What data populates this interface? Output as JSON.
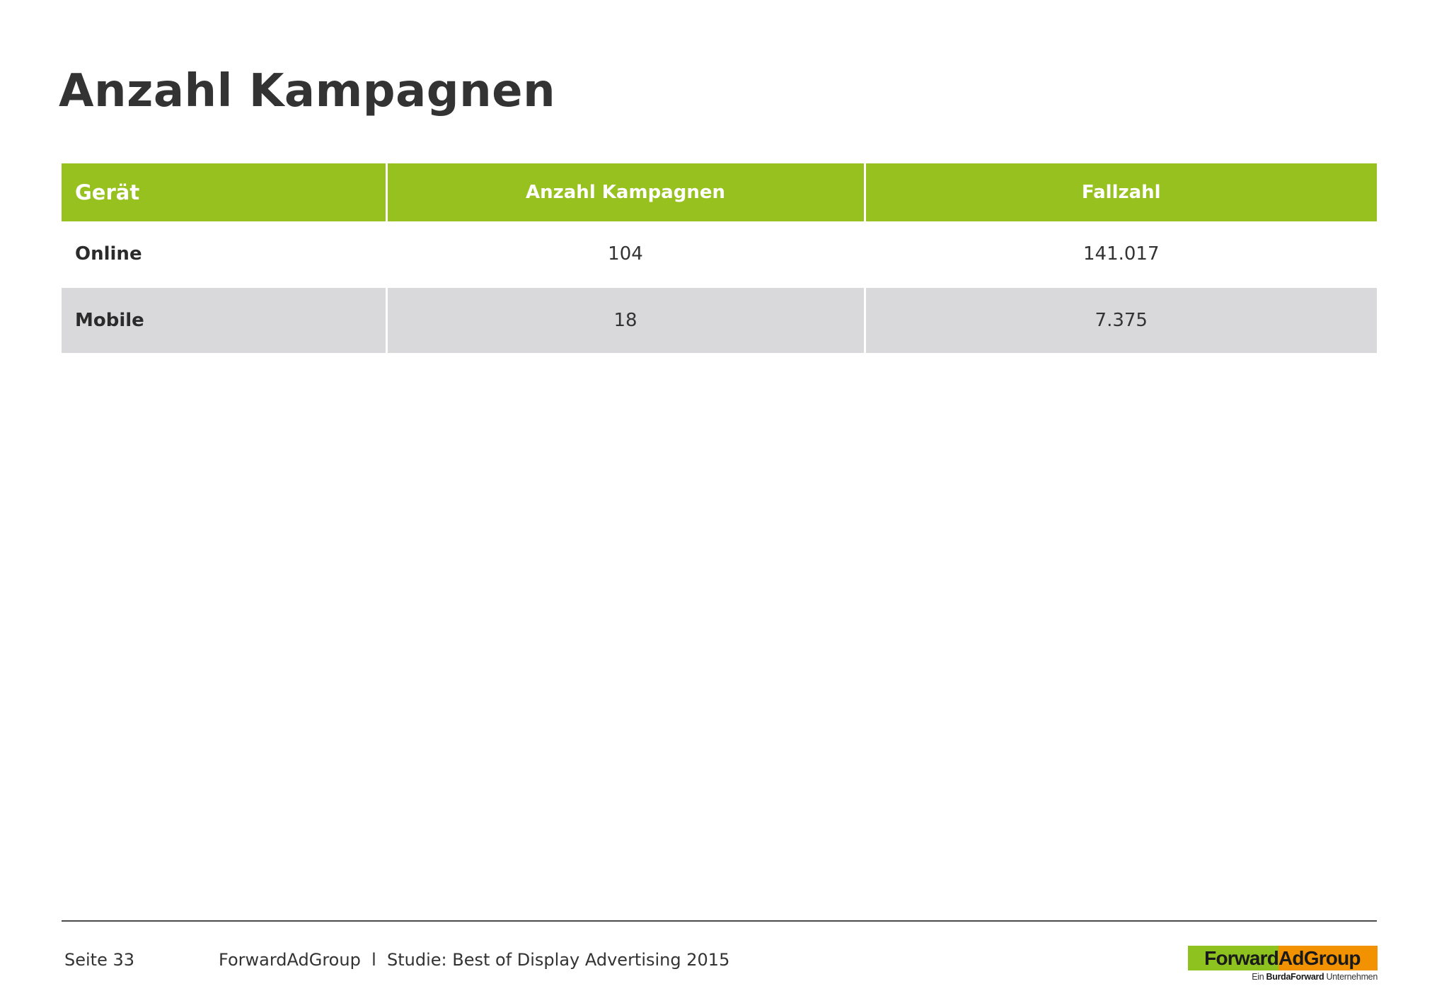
{
  "page": {
    "title": "Anzahl Kampagnen"
  },
  "table": {
    "headers": [
      "Gerät",
      "Anzahl Kampagnen",
      "Fallzahl"
    ],
    "rows": [
      {
        "geraet": "Online",
        "anzahl_kampagnen": "104",
        "fallzahl": "141.017"
      },
      {
        "geraet": "Mobile",
        "anzahl_kampagnen": "18",
        "fallzahl": "7.375"
      }
    ],
    "colors": {
      "header_bg": "#97c11f",
      "header_text": "#ffffff",
      "stripe_bg": "#d9d9db"
    }
  },
  "footer": {
    "page_label": "Seite 33",
    "source_text": "ForwardAdGroup  l  Studie: Best of Display Advertising 2015"
  },
  "logo": {
    "part1": "Forward",
    "part2": "AdGroup",
    "sub_prefix": "Ein ",
    "sub_brand": "BurdaForward",
    "sub_suffix": " Unternehmen",
    "colors": {
      "green": "#8dc21f",
      "orange": "#f39200"
    }
  }
}
